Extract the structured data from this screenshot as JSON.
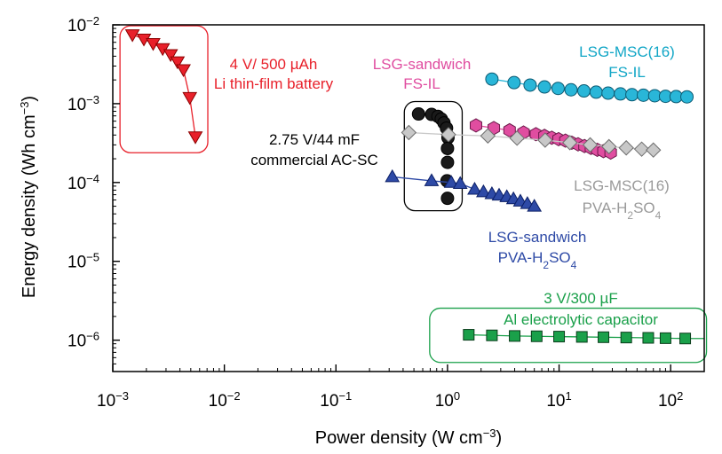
{
  "chart_data": {
    "type": "scatter",
    "title": "",
    "xlabel": "Power density (W cm",
    "xlabel_sup": "−3",
    "xlabel_end": ")",
    "ylabel": "Energy density (Wh cm",
    "ylabel_sup": "−3",
    "ylabel_end": ")",
    "xscale": "log",
    "yscale": "log",
    "xlim": [
      0.001,
      200
    ],
    "ylim": [
      4e-07,
      0.01
    ],
    "grid": false,
    "x_ticks": [
      {
        "value": 0.001,
        "base": "10",
        "exp": "−3"
      },
      {
        "value": 0.01,
        "base": "10",
        "exp": "−2"
      },
      {
        "value": 0.1,
        "base": "10",
        "exp": "−1"
      },
      {
        "value": 1,
        "base": "10",
        "exp": "0"
      },
      {
        "value": 10,
        "base": "10",
        "exp": "1"
      },
      {
        "value": 100,
        "base": "10",
        "exp": "2"
      }
    ],
    "y_ticks": [
      {
        "value": 0.01,
        "base": "10",
        "exp": "−2"
      },
      {
        "value": 0.001,
        "base": "10",
        "exp": "−3"
      },
      {
        "value": 0.0001,
        "base": "10",
        "exp": "−4"
      },
      {
        "value": 1e-05,
        "base": "10",
        "exp": "−5"
      },
      {
        "value": 1e-06,
        "base": "10",
        "exp": "−6"
      }
    ],
    "series": [
      {
        "key": "li",
        "label_lines": [
          "4 V/ 500 µAh",
          "Li thin-film battery"
        ],
        "marker": "triangle-down",
        "color": "#e8202a",
        "edge": "#8b0000",
        "line": true,
        "x": [
          0.0015,
          0.0019,
          0.0023,
          0.0028,
          0.0033,
          0.0038,
          0.0043,
          0.0049,
          0.0055
        ],
        "y": [
          0.0075,
          0.0066,
          0.0058,
          0.005,
          0.0042,
          0.0034,
          0.0027,
          0.0012,
          0.00038
        ]
      },
      {
        "key": "acsc",
        "label_lines": [
          "2.75 V/44 mF",
          "commercial AC-SC"
        ],
        "marker": "circle",
        "color": "#1a1a1a",
        "edge": "#000000",
        "line": false,
        "x": [
          0.55,
          0.72,
          0.82,
          0.88,
          0.93,
          0.98,
          1.01,
          1.0,
          1.0,
          0.99,
          1.0
        ],
        "y": [
          0.00074,
          0.00073,
          0.00069,
          0.00064,
          0.00057,
          0.00049,
          0.00037,
          0.00027,
          0.00018,
          0.000105,
          6.3e-05
        ]
      },
      {
        "key": "lsg_ps",
        "label_lines": [
          "LSG-sandwich",
          "PVA-H2SO4"
        ],
        "marker": "triangle-up",
        "color": "#2e4aa6",
        "edge": "#0b1f66",
        "line": true,
        "x": [
          0.32,
          0.72,
          1.08,
          1.3,
          1.75,
          2.1,
          2.5,
          2.9,
          3.4,
          3.9,
          4.5,
          5.2,
          6.0
        ],
        "y": [
          0.000118,
          0.000105,
          0.0001,
          9.7e-05,
          8.2e-05,
          7.6e-05,
          7.2e-05,
          6.9e-05,
          6.6e-05,
          6.2e-05,
          5.8e-05,
          5.4e-05,
          5e-05
        ]
      },
      {
        "key": "lsg_fs",
        "label_lines": [
          "LSG-sandwich",
          "FS-IL"
        ],
        "marker": "hexagon",
        "color": "#e04da0",
        "edge": "#6b1a4a",
        "line": true,
        "x": [
          1.8,
          2.6,
          3.6,
          4.8,
          6.2,
          7.4,
          8.6,
          9.9,
          11.4,
          13,
          14.8,
          16.9,
          19.3,
          22,
          25,
          29
        ],
        "y": [
          0.00053,
          0.00049,
          0.00046,
          0.00043,
          0.00041,
          0.00039,
          0.00037,
          0.000355,
          0.00034,
          0.00032,
          0.000305,
          0.00029,
          0.000275,
          0.00026,
          0.00025,
          0.00024
        ]
      },
      {
        "key": "msc_ps",
        "label_lines": [
          "LSG-MSC(16)",
          "PVA-H2SO4"
        ],
        "marker": "diamond",
        "color": "#c8c8c8",
        "edge": "#6e6e6e",
        "line": true,
        "x": [
          0.45,
          1.02,
          2.3,
          4.2,
          7.5,
          12.5,
          19,
          28,
          40,
          55,
          70
        ],
        "y": [
          0.00043,
          0.000405,
          0.00039,
          0.000365,
          0.000345,
          0.00032,
          0.0003,
          0.000285,
          0.000275,
          0.000265,
          0.000258
        ]
      },
      {
        "key": "msc_fs",
        "label_lines": [
          "LSG-MSC(16)",
          "FS-IL"
        ],
        "marker": "circle",
        "color": "#29b6d8",
        "edge": "#0b5a73",
        "line": true,
        "x": [
          2.5,
          3.95,
          5.5,
          7.4,
          9.8,
          12.8,
          16.7,
          21.5,
          27.5,
          35.5,
          45,
          57,
          72,
          90,
          112,
          140
        ],
        "y": [
          0.00205,
          0.00185,
          0.00172,
          0.00163,
          0.00156,
          0.0015,
          0.00145,
          0.0014,
          0.00136,
          0.00133,
          0.0013,
          0.00128,
          0.00126,
          0.00124,
          0.00123,
          0.00122
        ]
      },
      {
        "key": "al",
        "label_lines": [
          "3 V/300 µF",
          "Al electrolytic capacitor"
        ],
        "marker": "square",
        "color": "#1aa04a",
        "edge": "#0b3d1c",
        "line": true,
        "line_extend_x": 200,
        "x": [
          1.55,
          2.5,
          4.0,
          6.3,
          10.0,
          16.0,
          25.0,
          40.0,
          63.0,
          90.0,
          135.0
        ],
        "y": [
          1.17e-06,
          1.15e-06,
          1.13e-06,
          1.12e-06,
          1.11e-06,
          1.1e-06,
          1.09e-06,
          1.08e-06,
          1.07e-06,
          1.06e-06,
          1.05e-06
        ]
      }
    ],
    "annotations": [
      {
        "key": "li",
        "lines": [
          {
            "text": "4 V/ 500 µAh"
          },
          {
            "text": "Li thin-film battery"
          }
        ],
        "color": "#e8202a"
      },
      {
        "key": "lsg_fs",
        "lines": [
          {
            "text": "LSG-sandwich"
          },
          {
            "text": "FS-IL"
          }
        ],
        "color": "#e04da0"
      },
      {
        "key": "msc_fs",
        "lines": [
          {
            "text": "LSG-MSC(16)"
          },
          {
            "text": "FS-IL"
          }
        ],
        "color": "#11a6c6"
      },
      {
        "key": "acsc",
        "lines": [
          {
            "text": "2.75 V/44 mF"
          },
          {
            "text": "commercial AC-SC"
          }
        ],
        "color": "#000000"
      },
      {
        "key": "msc_ps",
        "lines": [
          {
            "text": "LSG-MSC(16)"
          },
          {
            "text": "PVA-H",
            "sub": "2",
            "after": "SO",
            "sub2": "4"
          }
        ],
        "color": "#9a9a9a"
      },
      {
        "key": "lsg_ps",
        "lines": [
          {
            "text": "LSG-sandwich"
          },
          {
            "text": "PVA-H",
            "sub": "2",
            "after": "SO",
            "sub2": "4"
          }
        ],
        "color": "#2e4aa6"
      },
      {
        "key": "al",
        "lines": [
          {
            "text": "3 V/300 µF"
          },
          {
            "text": "Al electrolytic capacitor"
          }
        ],
        "color": "#1aa04a"
      }
    ],
    "boxes": [
      {
        "key": "li",
        "color": "#e8202a"
      },
      {
        "key": "acsc",
        "color": "#000000"
      },
      {
        "key": "al",
        "color": "#1aa04a"
      }
    ]
  }
}
